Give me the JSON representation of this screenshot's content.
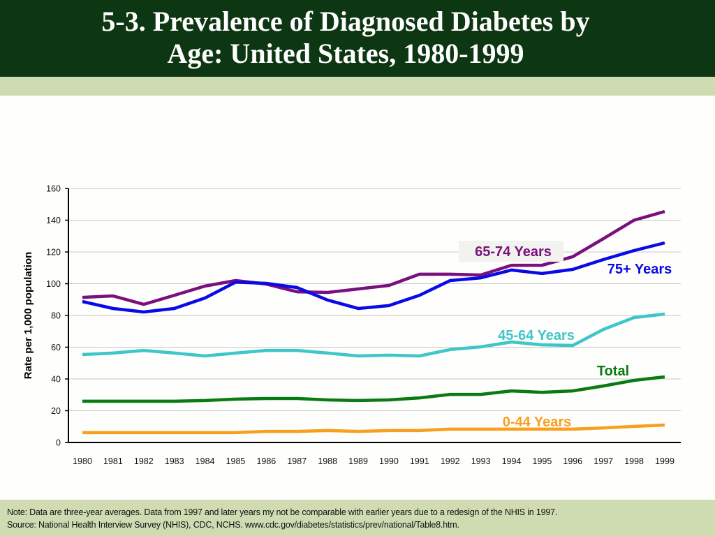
{
  "header": {
    "title_line1": "5-3.  Prevalence of Diagnosed Diabetes by",
    "title_line2": "Age: United States, 1980-1999"
  },
  "footer": {
    "note": "Note: Data are three-year averages. Data from 1997 and later years my not be comparable with earlier years due to a redesign of the NHIS in 1997.",
    "source": "Source: National Health Interview Survey (NHIS), CDC, NCHS.  www.cdc.gov/diabetes/statistics/prev/national/Table8.htm."
  },
  "chart_data": {
    "type": "line",
    "title": "5-3.  Prevalence of Diagnosed Diabetes by Age: United States, 1980-1999",
    "xlabel": "",
    "ylabel": "Rate per 1,000 population",
    "ylim": [
      0,
      160
    ],
    "yticks": [
      0,
      20,
      40,
      60,
      80,
      100,
      120,
      140,
      160
    ],
    "grid": true,
    "legend": "inline labels near line ends",
    "x": [
      "1980",
      "1981",
      "1982",
      "1983",
      "1984",
      "1985",
      "1986",
      "1987",
      "1988",
      "1989",
      "1990",
      "1991",
      "1992",
      "1993",
      "1994",
      "1995",
      "1996",
      "1997",
      "1998",
      "1999"
    ],
    "series": [
      {
        "name": "65-74 Years",
        "color": "#7a0f7e",
        "values": [
          91.4,
          92.3,
          87,
          92.7,
          98.5,
          102,
          99.8,
          94.9,
          94.5,
          96.7,
          98.9,
          106,
          106,
          105.5,
          111.6,
          111.6,
          117,
          128.4,
          140,
          145.5
        ]
      },
      {
        "name": "75+ Years",
        "color": "#0a0ae6",
        "values": [
          88.8,
          84.4,
          82.2,
          84.4,
          91,
          101,
          100.2,
          97.6,
          89.7,
          84.4,
          86.2,
          92.7,
          102,
          103.7,
          108.6,
          106.4,
          109,
          115.2,
          120.9,
          125.7
        ]
      },
      {
        "name": "45-64 Years",
        "color": "#3ec6c8",
        "values": [
          55.4,
          56.3,
          58,
          56.3,
          54.5,
          56.3,
          58,
          58,
          56.3,
          54.5,
          55,
          54.5,
          58.5,
          60.2,
          63.3,
          61.5,
          61.1,
          71.2,
          78.7,
          80.9
        ]
      },
      {
        "name": "Total",
        "color": "#0a7a12",
        "values": [
          26,
          26,
          26,
          26,
          26.4,
          27.3,
          27.7,
          27.7,
          26.8,
          26.4,
          26.8,
          28.1,
          30.3,
          30.3,
          32.5,
          31.6,
          32.5,
          35.6,
          39.1,
          41.3
        ]
      },
      {
        "name": "0-44 Years",
        "color": "#f7a01e",
        "values": [
          6.2,
          6.2,
          6.2,
          6.2,
          6.2,
          6.2,
          7,
          7,
          7.5,
          7,
          7.5,
          7.5,
          8.4,
          8.4,
          8.4,
          8.4,
          8.4,
          9.2,
          10.1,
          11
        ]
      }
    ]
  }
}
